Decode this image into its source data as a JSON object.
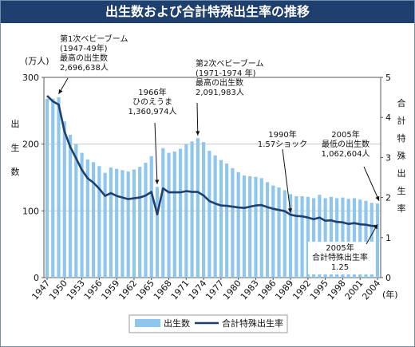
{
  "title": "出生数および合計特殊出生率の推移",
  "chart_data": {
    "type": "bar",
    "x": [
      1947,
      1948,
      1949,
      1950,
      1951,
      1952,
      1953,
      1954,
      1955,
      1956,
      1957,
      1958,
      1959,
      1960,
      1961,
      1962,
      1963,
      1964,
      1965,
      1966,
      1967,
      1968,
      1969,
      1970,
      1971,
      1972,
      1973,
      1974,
      1975,
      1976,
      1977,
      1978,
      1979,
      1980,
      1981,
      1982,
      1983,
      1984,
      1985,
      1986,
      1987,
      1988,
      1989,
      1990,
      1991,
      1992,
      1993,
      1994,
      1995,
      1996,
      1997,
      1998,
      1999,
      2000,
      2001,
      2002,
      2003,
      2004
    ],
    "x_tick_labels": [
      "1947",
      "1950",
      "1953",
      "1956",
      "1959",
      "1962",
      "1965",
      "1968",
      "1971",
      "1974",
      "1977",
      "1980",
      "1983",
      "1986",
      "1989",
      "1992",
      "1995",
      "1998",
      "2001",
      "2004"
    ],
    "x_unit": "(年)",
    "ylabel_left": "出生数",
    "y_left_unit": "(万人)",
    "ylim_left": [
      0,
      300
    ],
    "yticks_left": [
      "0",
      "100",
      "200",
      "300"
    ],
    "ylabel_right": "合計特殊出生率",
    "ylim_right": [
      0,
      5
    ],
    "yticks_right": [
      "0",
      "1",
      "2",
      "3",
      "4",
      "5"
    ],
    "series": [
      {
        "name": "出生数",
        "kind": "bar",
        "axis": "left",
        "color": "#8fc6ee",
        "values": [
          268,
          268,
          270,
          234,
          214,
          200,
          187,
          177,
          173,
          167,
          157,
          165,
          163,
          161,
          159,
          162,
          166,
          172,
          182,
          136,
          194,
          187,
          189,
          193,
          200,
          204,
          209,
          203,
          190,
          183,
          176,
          171,
          164,
          158,
          153,
          152,
          151,
          149,
          143,
          138,
          135,
          131,
          125,
          122,
          122,
          121,
          119,
          124,
          119,
          121,
          119,
          120,
          118,
          119,
          117,
          115,
          112,
          111
        ]
      },
      {
        "name": "合計特殊出生率",
        "kind": "line",
        "axis": "right",
        "color": "#1f3f6e",
        "values": [
          4.54,
          4.4,
          4.32,
          3.65,
          3.26,
          2.98,
          2.69,
          2.48,
          2.37,
          2.22,
          2.04,
          2.11,
          2.04,
          2.0,
          1.96,
          1.98,
          2.0,
          2.05,
          2.14,
          1.58,
          2.23,
          2.13,
          2.13,
          2.13,
          2.16,
          2.14,
          2.14,
          2.05,
          1.91,
          1.85,
          1.8,
          1.79,
          1.77,
          1.75,
          1.74,
          1.77,
          1.8,
          1.81,
          1.76,
          1.72,
          1.69,
          1.66,
          1.57,
          1.54,
          1.53,
          1.5,
          1.46,
          1.5,
          1.42,
          1.43,
          1.39,
          1.38,
          1.34,
          1.36,
          1.33,
          1.32,
          1.29,
          1.29
        ]
      }
    ],
    "legend_position": "bottom",
    "annotations": [
      {
        "lines": [
          "第1次ベビーブーム",
          "(1947-49年)",
          "最高の出生数",
          "2,696,638人"
        ]
      },
      {
        "lines": [
          "1966年",
          "ひのえうま",
          "1,360,974人"
        ]
      },
      {
        "lines": [
          "第2次ベビーブーム",
          "(1971-1974 年)",
          "最高の出生数",
          "2,091,983人"
        ]
      },
      {
        "lines": [
          "1990年",
          "1.57ショック"
        ]
      },
      {
        "lines": [
          "2005年",
          "最低の出生数",
          "1,062,604人"
        ]
      },
      {
        "lines": [
          "2005年",
          "合計特殊出生率",
          "1.25"
        ]
      }
    ]
  }
}
